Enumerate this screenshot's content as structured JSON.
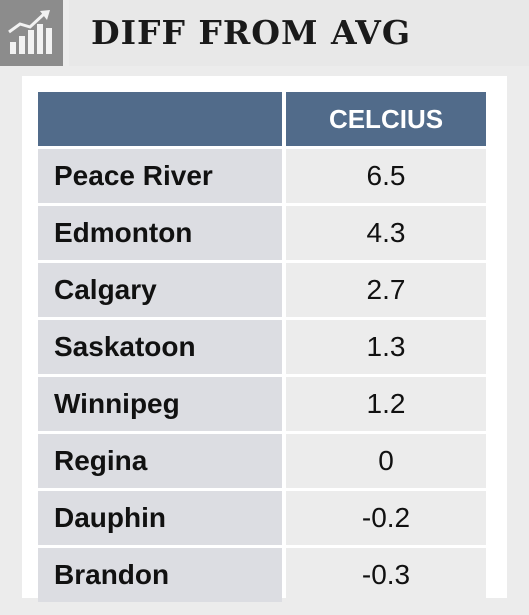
{
  "title": "DIFF FROM AVG",
  "icon": "chart-trend-icon",
  "colors": {
    "header_bg": "#516b8a",
    "name_cell": "#dcdde2",
    "value_cell": "#ececec",
    "icon_bg": "#8c8c8c"
  },
  "chart_data": {
    "type": "table",
    "columns": [
      "",
      "CELCIUS"
    ],
    "rows": [
      {
        "name": "Peace River",
        "value": "6.5"
      },
      {
        "name": "Edmonton",
        "value": "4.3"
      },
      {
        "name": "Calgary",
        "value": "2.7"
      },
      {
        "name": "Saskatoon",
        "value": "1.3"
      },
      {
        "name": "Winnipeg",
        "value": "1.2"
      },
      {
        "name": "Regina",
        "value": "0"
      },
      {
        "name": "Dauphin",
        "value": "-0.2"
      },
      {
        "name": "Brandon",
        "value": "-0.3"
      }
    ]
  }
}
